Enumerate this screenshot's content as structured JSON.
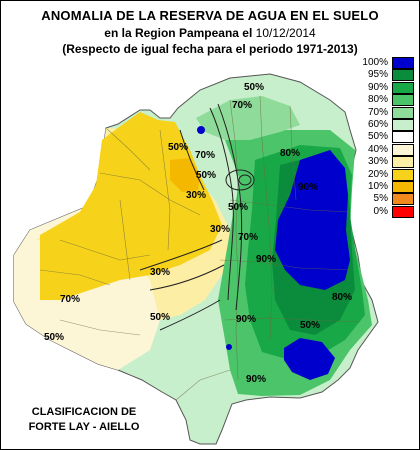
{
  "title": {
    "line1": "ANOMALIA DE LA RESERVA DE AGUA EN EL SUELO",
    "line2_prefix": "en la Region Pampeana el",
    "line2_date": "10/12/2014",
    "line3": "(Respecto de igual fecha para el periodo 1971-2013)"
  },
  "legend": {
    "items": [
      {
        "label": "100%",
        "color": "#0000cc"
      },
      {
        "label": "95%",
        "color": "#0a8c3c"
      },
      {
        "label": "90%",
        "color": "#19a848"
      },
      {
        "label": "80%",
        "color": "#4cc46a"
      },
      {
        "label": "70%",
        "color": "#8fdc9a"
      },
      {
        "label": "60%",
        "color": "#c8efcb"
      },
      {
        "label": "50%",
        "color": "#ffffff"
      },
      {
        "label": "40%",
        "color": "#fdf6d6"
      },
      {
        "label": "30%",
        "color": "#fdeea6"
      },
      {
        "label": "20%",
        "color": "#f7d21a"
      },
      {
        "label": "10%",
        "color": "#f5b800"
      },
      {
        "label": "5%",
        "color": "#f08a1e"
      },
      {
        "label": "0%",
        "color": "#ff0000"
      }
    ]
  },
  "contour_labels": [
    {
      "text": "50%"
    },
    {
      "text": "70%"
    },
    {
      "text": "80%"
    },
    {
      "text": "90%"
    },
    {
      "text": "50%"
    },
    {
      "text": "30%"
    },
    {
      "text": "70%"
    },
    {
      "text": "50%"
    },
    {
      "text": "30%"
    },
    {
      "text": "50%"
    },
    {
      "text": "70%"
    },
    {
      "text": "90%"
    },
    {
      "text": "30%"
    },
    {
      "text": "50%"
    },
    {
      "text": "90%"
    },
    {
      "text": "80%"
    },
    {
      "text": "50%"
    },
    {
      "text": "90%"
    },
    {
      "text": "70%"
    },
    {
      "text": "50%"
    }
  ],
  "credit": {
    "line1": "CLASIFICACION DE",
    "line2": "FORTE LAY - AIELLO"
  }
}
